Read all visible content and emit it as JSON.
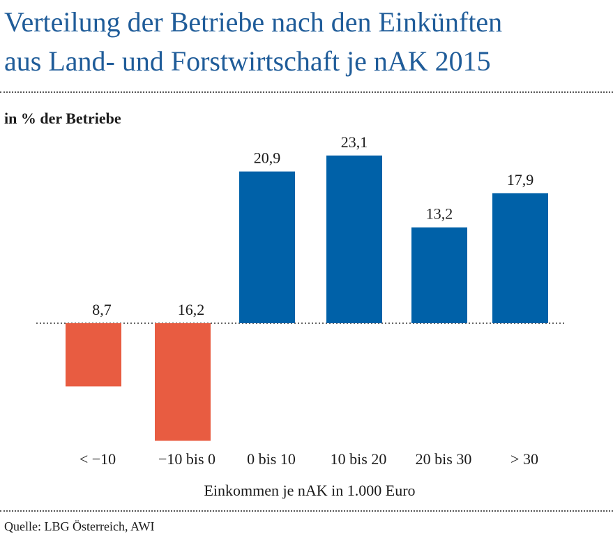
{
  "header": {
    "title_line1": "Verteilung der Betriebe nach den Einkünften",
    "title_line2": "aus Land- und Forstwirtschaft je nAK 2015"
  },
  "subtitle": "in % der Betriebe",
  "source": "Quelle: LBG Österreich, AWI",
  "colors": {
    "negative": "#e85c41",
    "positive": "#0061a8",
    "title": "#1f5c99"
  },
  "chart_data": {
    "type": "bar",
    "title": "Verteilung der Betriebe nach den Einkünften aus Land- und Forstwirtschaft je nAK 2015",
    "ylabel": "in % der Betriebe",
    "xlabel": "Einkommen je nAK in 1.000 Euro",
    "categories": [
      "< −10",
      "−10 bis 0",
      "0 bis 10",
      "10 bis 20",
      "20 bis 30",
      "> 30"
    ],
    "values": [
      8.7,
      16.2,
      20.9,
      23.1,
      13.2,
      17.9
    ],
    "value_labels": [
      "8,7",
      "16,2",
      "20,9",
      "23,1",
      "13,2",
      "17,9"
    ],
    "direction": [
      "down",
      "down",
      "up",
      "up",
      "up",
      "up"
    ],
    "grid": false,
    "baseline": "dotted"
  }
}
